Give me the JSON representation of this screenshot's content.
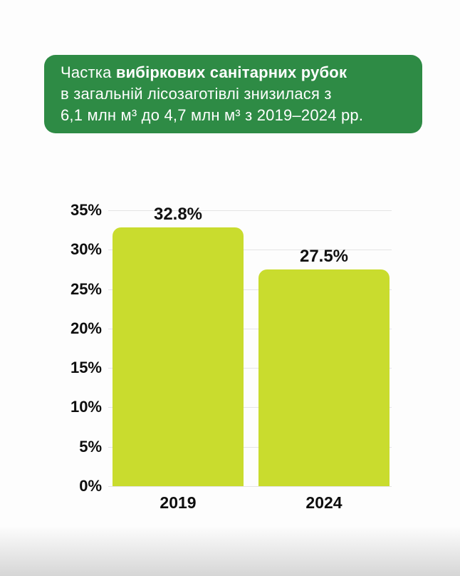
{
  "header": {
    "text_prefix": "Частка ",
    "text_bold": "вибіркових санітарних рубок",
    "line2": "в загальній лісозаготівлі знизилася з",
    "line3": "6,1 млн м³ до 4,7 млн м³ з 2019–2024 рр.",
    "background_color": "#2e8b45",
    "text_color": "#ffffff"
  },
  "chart_data": {
    "type": "bar",
    "categories": [
      "2019",
      "2024"
    ],
    "values": [
      32.8,
      27.5
    ],
    "value_labels": [
      "32.8%",
      "27.5%"
    ],
    "title": "",
    "xlabel": "",
    "ylabel": "",
    "ylim": [
      0,
      35
    ],
    "yticks": [
      35,
      30,
      25,
      20,
      15,
      10,
      5,
      0
    ],
    "ytick_labels": [
      "35%",
      "30%",
      "25%",
      "20%",
      "15%",
      "10%",
      "5%",
      "0%"
    ],
    "grid": true,
    "legend": false,
    "bar_color": "#c9dc2e",
    "grid_color": "#e4e4e4",
    "label_color": "#111111"
  }
}
